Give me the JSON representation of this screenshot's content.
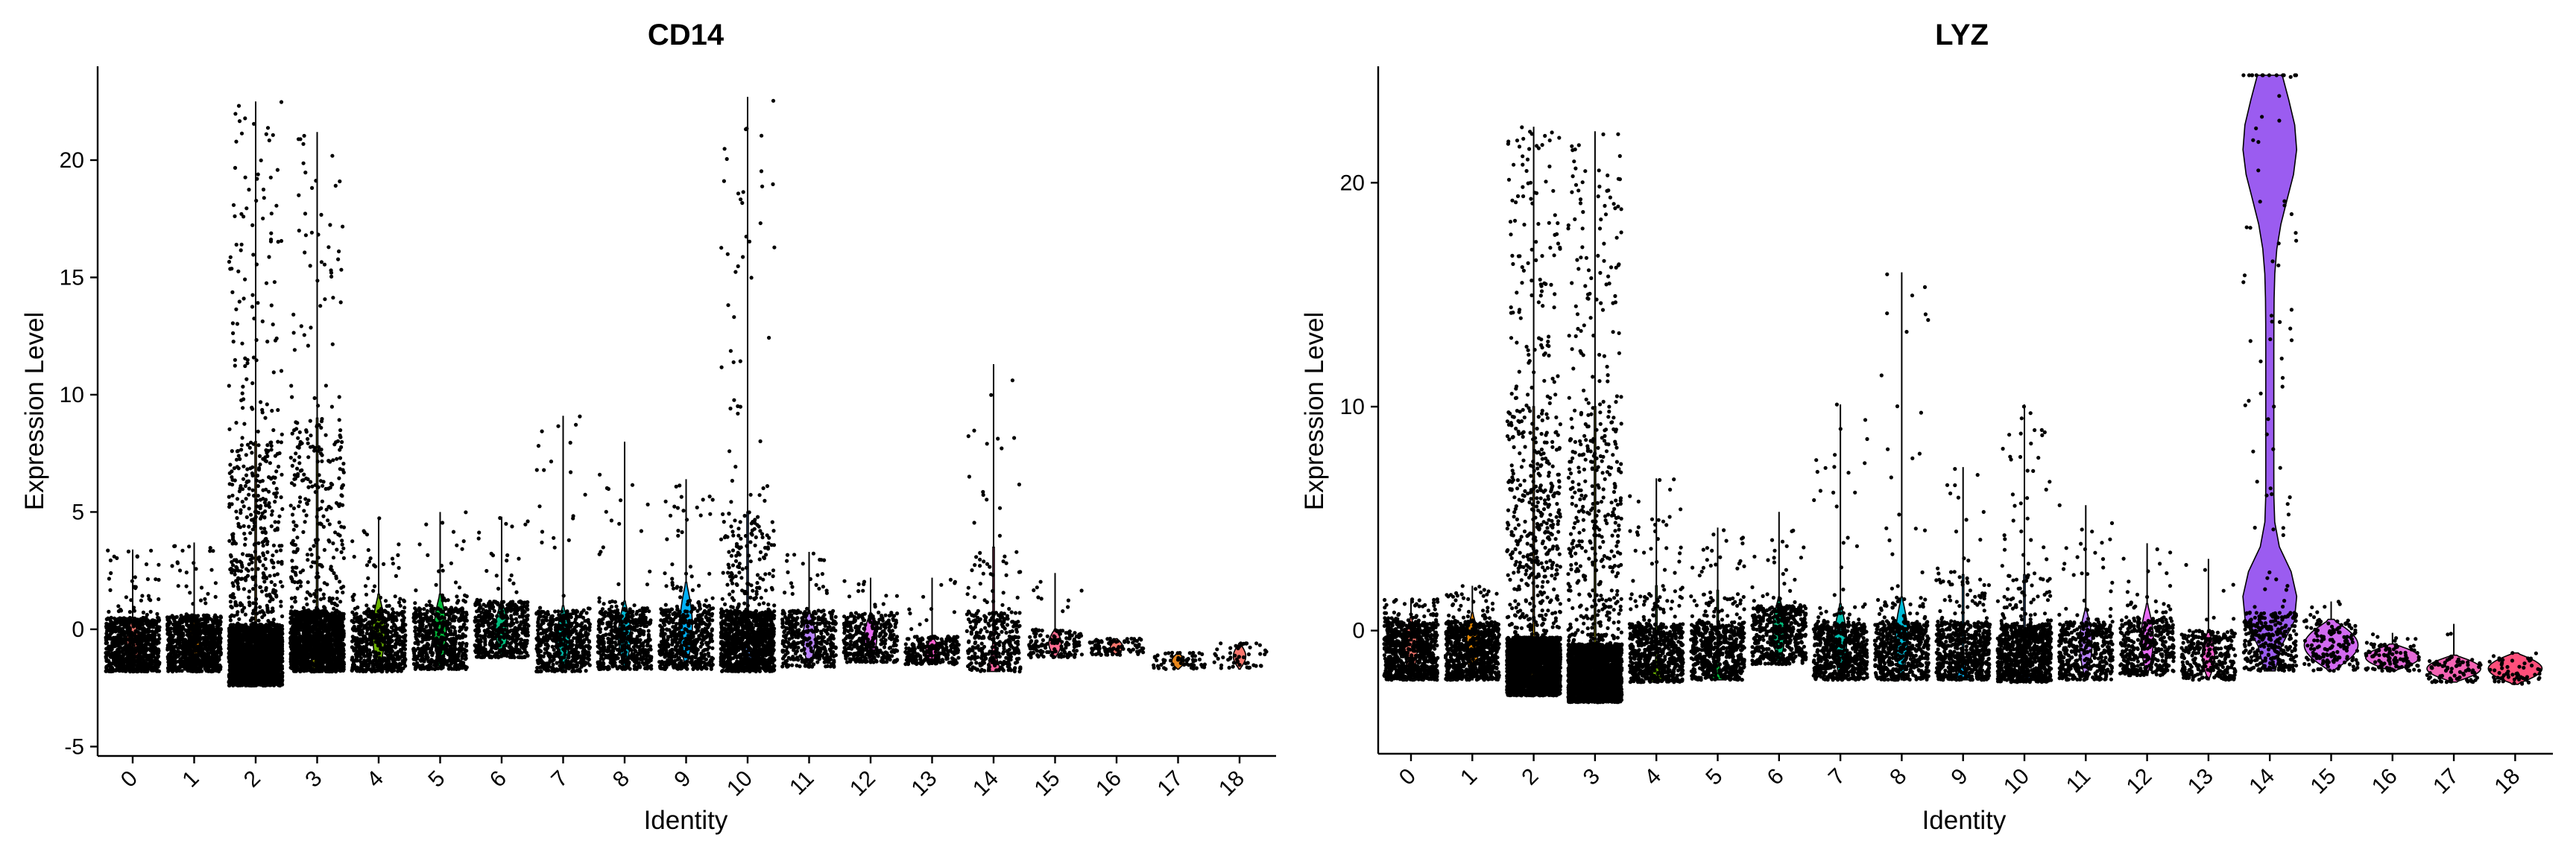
{
  "chart_data": [
    {
      "type": "violin",
      "title": "CD14",
      "xlabel": "Identity",
      "ylabel": "Expression Level",
      "ylim": [
        -5.4,
        24
      ],
      "yticks": [
        -5,
        0,
        5,
        10,
        15,
        20
      ],
      "groups": [
        {
          "id": "0",
          "color": "#F8766D",
          "body_min": -1.8,
          "body_max": 0.5,
          "max": 3.4,
          "points": 900
        },
        {
          "id": "1",
          "color": "#E58700",
          "body_min": -1.8,
          "body_max": 0.6,
          "max": 3.7,
          "points": 900
        },
        {
          "id": "2",
          "color": "#C99800",
          "body_min": -2.4,
          "body_max": 8.0,
          "max": 22.5,
          "points": 2600
        },
        {
          "id": "3",
          "color": "#A3A500",
          "body_min": -1.8,
          "body_max": 9.0,
          "max": 21.2,
          "points": 1700
        },
        {
          "id": "4",
          "color": "#6BB100",
          "body_min": -1.8,
          "body_max": 1.5,
          "max": 4.8,
          "points": 650
        },
        {
          "id": "5",
          "color": "#00BA38",
          "body_min": -1.7,
          "body_max": 1.5,
          "max": 5.0,
          "points": 600
        },
        {
          "id": "6",
          "color": "#00BF7D",
          "body_min": -1.2,
          "body_max": 1.2,
          "max": 4.8,
          "points": 500
        },
        {
          "id": "7",
          "color": "#00C0AF",
          "body_min": -1.8,
          "body_max": 1.0,
          "max": 9.1,
          "points": 550
        },
        {
          "id": "8",
          "color": "#00BCD8",
          "body_min": -1.7,
          "body_max": 1.2,
          "max": 8.0,
          "points": 550
        },
        {
          "id": "9",
          "color": "#00B0F6",
          "body_min": -1.7,
          "body_max": 2.0,
          "max": 6.4,
          "points": 550
        },
        {
          "id": "10",
          "color": "#619CFF",
          "body_min": -1.8,
          "body_max": 5.0,
          "max": 22.7,
          "points": 1200
        },
        {
          "id": "11",
          "color": "#B983FF",
          "body_min": -1.6,
          "body_max": 0.8,
          "max": 3.3,
          "points": 400
        },
        {
          "id": "12",
          "color": "#E76BF3",
          "body_min": -1.4,
          "body_max": 0.7,
          "max": 2.2,
          "points": 350
        },
        {
          "id": "13",
          "color": "#FD61D1",
          "body_min": -1.5,
          "body_max": -0.3,
          "max": 2.2,
          "points": 250
        },
        {
          "id": "14",
          "color": "#FF67A4",
          "body_min": -1.8,
          "body_max": 3.5,
          "max": 11.3,
          "points": 350
        },
        {
          "id": "15",
          "color": "#FF6C91",
          "body_min": -1.2,
          "body_max": 0.0,
          "max": 2.4,
          "points": 150
        },
        {
          "id": "16",
          "color": "#F8766D",
          "body_min": -1.1,
          "body_max": -0.4,
          "max": -0.4,
          "points": 90
        },
        {
          "id": "17",
          "color": "#E7861B",
          "body_min": -1.7,
          "body_max": -1.0,
          "max": -1.0,
          "points": 60
        },
        {
          "id": "18",
          "color": "#F8766D",
          "body_min": -1.7,
          "body_max": -0.6,
          "max": -0.6,
          "points": 50
        }
      ]
    },
    {
      "type": "violin",
      "title": "LYZ",
      "xlabel": "Identity",
      "ylabel": "Expression Level",
      "ylim": [
        -5.5,
        25.2
      ],
      "yticks": [
        0,
        10,
        20
      ],
      "groups": [
        {
          "id": "0",
          "color": "#F8766D",
          "body_min": -2.2,
          "body_max": 0.6,
          "max": 1.4,
          "points": 800
        },
        {
          "id": "1",
          "color": "#E58700",
          "body_min": -2.2,
          "body_max": 0.8,
          "max": 2.0,
          "points": 850
        },
        {
          "id": "2",
          "color": "#C99800",
          "body_min": -2.9,
          "body_max": 10.0,
          "max": 22.5,
          "points": 2700
        },
        {
          "id": "3",
          "color": "#A3A500",
          "body_min": -3.2,
          "body_max": 10.0,
          "max": 22.3,
          "points": 2500
        },
        {
          "id": "4",
          "color": "#6BB100",
          "body_min": -2.3,
          "body_max": 2.0,
          "max": 6.8,
          "points": 700
        },
        {
          "id": "5",
          "color": "#00BA38",
          "body_min": -2.2,
          "body_max": 1.8,
          "max": 4.6,
          "points": 650
        },
        {
          "id": "6",
          "color": "#00BF7D",
          "body_min": -1.5,
          "body_max": 1.5,
          "max": 5.3,
          "points": 500
        },
        {
          "id": "7",
          "color": "#00C0AF",
          "body_min": -2.2,
          "body_max": 1.2,
          "max": 10.1,
          "points": 600
        },
        {
          "id": "8",
          "color": "#00BCD8",
          "body_min": -2.2,
          "body_max": 1.5,
          "max": 16.0,
          "points": 600
        },
        {
          "id": "9",
          "color": "#00B0F6",
          "body_min": -2.2,
          "body_max": 2.5,
          "max": 7.3,
          "points": 650
        },
        {
          "id": "10",
          "color": "#619CFF",
          "body_min": -2.3,
          "body_max": 2.5,
          "max": 10.1,
          "points": 900
        },
        {
          "id": "11",
          "color": "#B983FF",
          "body_min": -2.2,
          "body_max": 1.0,
          "max": 5.6,
          "points": 450
        },
        {
          "id": "12",
          "color": "#E76BF3",
          "body_min": -2.0,
          "body_max": 1.2,
          "max": 3.9,
          "points": 400
        },
        {
          "id": "13",
          "color": "#FD61D1",
          "body_min": -2.2,
          "body_max": 0.0,
          "max": 3.2,
          "points": 300
        },
        {
          "id": "14",
          "color": "#9B5CF0",
          "body_min": -1.8,
          "body_max": 24.8,
          "max": 24.8,
          "points": 380,
          "violin": true
        },
        {
          "id": "15",
          "color": "#D16AF0",
          "body_min": -1.8,
          "body_max": 0.5,
          "max": 1.3,
          "points": 150,
          "violin": true
        },
        {
          "id": "16",
          "color": "#E46BD8",
          "body_min": -1.8,
          "body_max": -0.6,
          "max": -0.1,
          "points": 110,
          "violin": true
        },
        {
          "id": "17",
          "color": "#F364B4",
          "body_min": -2.3,
          "body_max": -1.1,
          "max": 0.3,
          "points": 80,
          "violin": true
        },
        {
          "id": "18",
          "color": "#FF4F7B",
          "body_min": -2.4,
          "body_max": -1.0,
          "max": -1.0,
          "points": 60,
          "violin": true
        }
      ]
    }
  ]
}
